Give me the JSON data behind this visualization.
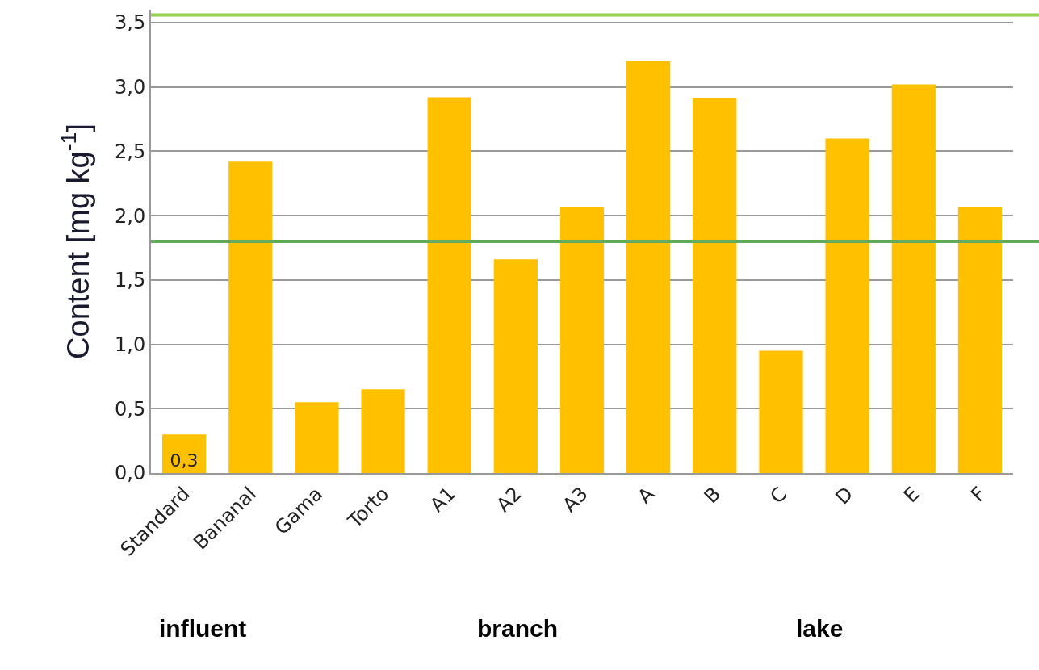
{
  "chart_data": {
    "type": "bar",
    "ylabel": "Content [mg kg$^{-1}$]",
    "categories": [
      "Standard",
      "Bananal",
      "Gama",
      "Torto",
      "A1",
      "A2",
      "A3",
      "A",
      "B",
      "C",
      "D",
      "E",
      "F"
    ],
    "values": [
      0.3,
      2.42,
      0.55,
      0.65,
      2.92,
      1.66,
      2.07,
      3.2,
      2.91,
      0.95,
      2.6,
      3.02,
      2.07
    ],
    "value_labels": [
      "0,3",
      null,
      null,
      null,
      null,
      null,
      null,
      null,
      null,
      null,
      null,
      null,
      null
    ],
    "color": "#ffc000",
    "ylim": [
      0,
      3.6
    ],
    "yticks": [
      {
        "value": 0,
        "label": "0,0"
      },
      {
        "value": 0.5,
        "label": "0,5"
      },
      {
        "value": 1,
        "label": "1,0"
      },
      {
        "value": 1.5,
        "label": "1,5"
      },
      {
        "value": 2,
        "label": "2,0"
      },
      {
        "value": 2.5,
        "label": "2,5"
      },
      {
        "value": 3,
        "label": "3,0"
      },
      {
        "value": 3.5,
        "label": "3,5"
      }
    ],
    "ref_lines": [
      {
        "axis": "y",
        "value": 3.56,
        "color": "#92d050"
      },
      {
        "axis": "y",
        "value": 1.8,
        "color": "#63aa5e"
      }
    ],
    "annotations": [
      "influent",
      "branch",
      "lake"
    ],
    "grid": "y",
    "legend": false
  }
}
